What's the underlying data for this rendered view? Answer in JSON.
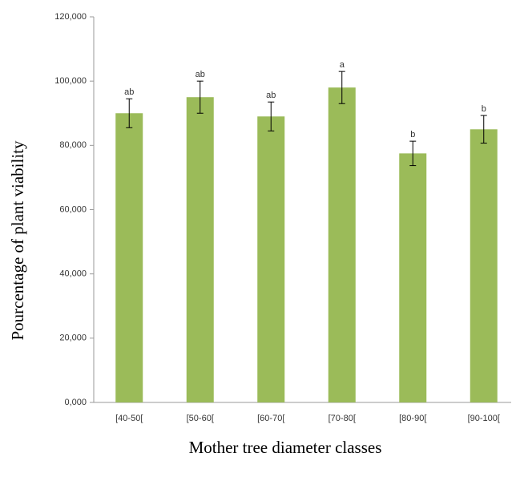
{
  "chart_data": {
    "type": "bar",
    "x_label": "Mother tree diameter classes",
    "y_label": "Pourcentage of plant viability",
    "categories": [
      "[40-50[",
      "[50-60[",
      "[60-70[",
      "[70-80[",
      "[80-90[",
      "[90-100["
    ],
    "values": [
      90,
      95,
      89,
      98,
      77.5,
      85
    ],
    "errors": [
      4.5,
      5,
      4.5,
      5,
      3.8,
      4.3
    ],
    "annotations": [
      "ab",
      "ab",
      "ab",
      "a",
      "b",
      "b"
    ],
    "color": "#9bbb59",
    "ylim": [
      0,
      120
    ],
    "yticks": [
      {
        "value": 0,
        "label": "0,000"
      },
      {
        "value": 20,
        "label": "20,000"
      },
      {
        "value": 40,
        "label": "40,000"
      },
      {
        "value": 60,
        "label": "60,000"
      },
      {
        "value": 80,
        "label": "80,000"
      },
      {
        "value": 100,
        "label": "100,000"
      },
      {
        "value": 120,
        "label": "120,000"
      }
    ],
    "grid": false
  }
}
